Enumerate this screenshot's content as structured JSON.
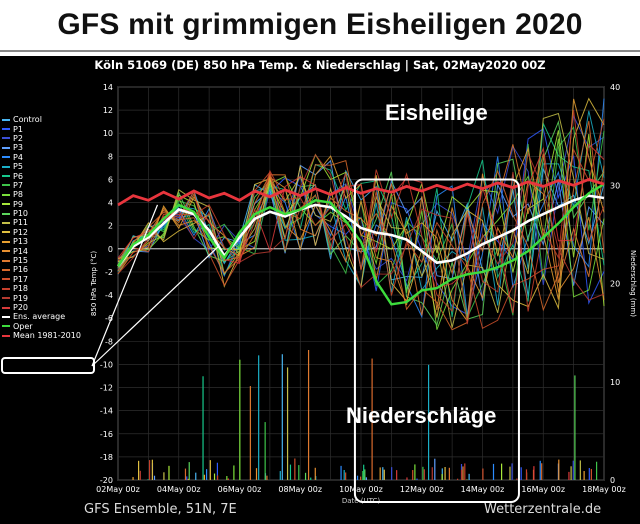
{
  "page": {
    "headline": "GFS mit grimmigen Eisheiligen 2020",
    "footer_left": "GFS Ensemble, 51N, 7E",
    "footer_right": "Wetterzentrale.de"
  },
  "annotations": {
    "eisheilige": "Eisheilige",
    "niederschlaege": "Niederschläge"
  },
  "colors": {
    "background": "#000000",
    "grid": "#2e2e2e",
    "ens_average": "#ffffff",
    "mean_1981_2010": "#e8353d",
    "oper": "#3ddc3d",
    "highlight_box": "#ffffff"
  },
  "chart_data": {
    "type": "line",
    "title": "Köln 51069 (DE)  850 hPa Temp. & Niederschlag | Sat, 02May2020 00Z",
    "xlabel": "Date (UTC)",
    "ylabel": "850 hPa Temp (°C)",
    "y2label": "Niederschlag (mm)",
    "x": [
      "02May 00z",
      "04May 00z",
      "06May 00z",
      "08May 00z",
      "10May 00z",
      "12May 00z",
      "14May 00z",
      "16May 00z",
      "18May 00z"
    ],
    "x_range_days": [
      0,
      16
    ],
    "ylim": [
      -20,
      14
    ],
    "yticks": [
      -20,
      -18,
      -16,
      -14,
      -12,
      -10,
      -8,
      -6,
      -4,
      -2,
      0,
      2,
      4,
      6,
      8,
      10,
      12,
      14
    ],
    "y2lim": [
      0,
      40
    ],
    "y2ticks": [
      0,
      10,
      20,
      30,
      40
    ],
    "grid": true,
    "legend_position": "left",
    "legend": [
      "Control",
      "P1",
      "P2",
      "P3",
      "P4",
      "P5",
      "P6",
      "P7",
      "P8",
      "P9",
      "P10",
      "P11",
      "P12",
      "P13",
      "P14",
      "P15",
      "P16",
      "P17",
      "P18",
      "P19",
      "P20",
      "Ens. average",
      "Oper",
      "Mean 1981-2010"
    ],
    "legend_colors": [
      "#49b6f2",
      "#2f5bff",
      "#3a4fd8",
      "#5fa0ff",
      "#2c8cff",
      "#1bb0c8",
      "#16c98c",
      "#3ec44a",
      "#7ae03a",
      "#a8e83a",
      "#5cd65c",
      "#c4c048",
      "#e0c040",
      "#e8a030",
      "#e89030",
      "#e07a30",
      "#d86a2c",
      "#d0502c",
      "#c8402c",
      "#b53a30",
      "#d83a3a",
      "#ffffff",
      "#3ddc3d",
      "#e8353d"
    ],
    "series": [
      {
        "name": "Ens. average",
        "x": [
          0,
          0.5,
          1,
          1.5,
          2,
          2.5,
          3,
          3.5,
          4,
          4.5,
          5,
          5.5,
          6,
          6.5,
          7,
          7.5,
          8,
          8.5,
          9,
          9.5,
          10,
          10.5,
          11,
          11.5,
          12,
          12.5,
          13,
          13.5,
          14,
          14.5,
          15,
          15.5,
          16
        ],
        "values": [
          -1.5,
          0.2,
          1.0,
          2.2,
          3.4,
          3.0,
          1.6,
          -0.6,
          1.0,
          2.6,
          3.2,
          2.8,
          3.4,
          3.8,
          3.6,
          2.8,
          1.8,
          1.4,
          1.2,
          0.8,
          -0.2,
          -1.2,
          -1.0,
          -0.4,
          0.4,
          1.0,
          1.6,
          2.4,
          3.0,
          3.6,
          4.2,
          4.6,
          4.4
        ]
      },
      {
        "name": "Oper",
        "x": [
          0,
          0.5,
          1,
          1.5,
          2,
          2.5,
          3,
          3.5,
          4,
          4.5,
          5,
          5.5,
          6,
          6.5,
          7,
          7.5,
          8,
          8.5,
          9,
          9.5,
          10,
          10.5,
          11,
          11.5,
          12,
          12.5,
          13,
          13.5,
          14,
          14.5,
          15,
          15.5,
          16
        ],
        "values": [
          -1.5,
          0.4,
          1.2,
          2.6,
          3.8,
          3.2,
          1.0,
          -0.8,
          1.4,
          3.0,
          3.6,
          3.0,
          3.4,
          4.2,
          4.0,
          2.4,
          0.6,
          -2.8,
          -4.8,
          -4.6,
          -3.6,
          -3.4,
          -2.6,
          -2.2,
          -2.0,
          -1.6,
          -1.0,
          -0.2,
          1.0,
          2.2,
          3.6,
          4.8,
          5.6
        ]
      },
      {
        "name": "Mean 1981-2010",
        "x": [
          0,
          0.5,
          1,
          1.5,
          2,
          2.5,
          3,
          3.5,
          4,
          4.5,
          5,
          5.5,
          6,
          6.5,
          7,
          7.5,
          8,
          8.5,
          9,
          9.5,
          10,
          10.5,
          11,
          11.5,
          12,
          12.5,
          13,
          13.5,
          14,
          14.5,
          15,
          15.5,
          16
        ],
        "values": [
          3.8,
          4.6,
          4.2,
          4.9,
          4.3,
          5.0,
          4.4,
          4.8,
          4.2,
          5.0,
          4.5,
          5.1,
          4.6,
          5.2,
          4.7,
          5.3,
          4.8,
          5.2,
          4.9,
          5.4,
          5.0,
          5.5,
          5.1,
          5.6,
          5.2,
          5.7,
          5.3,
          5.8,
          5.4,
          5.9,
          5.5,
          6.0,
          5.6
        ]
      }
    ]
  }
}
